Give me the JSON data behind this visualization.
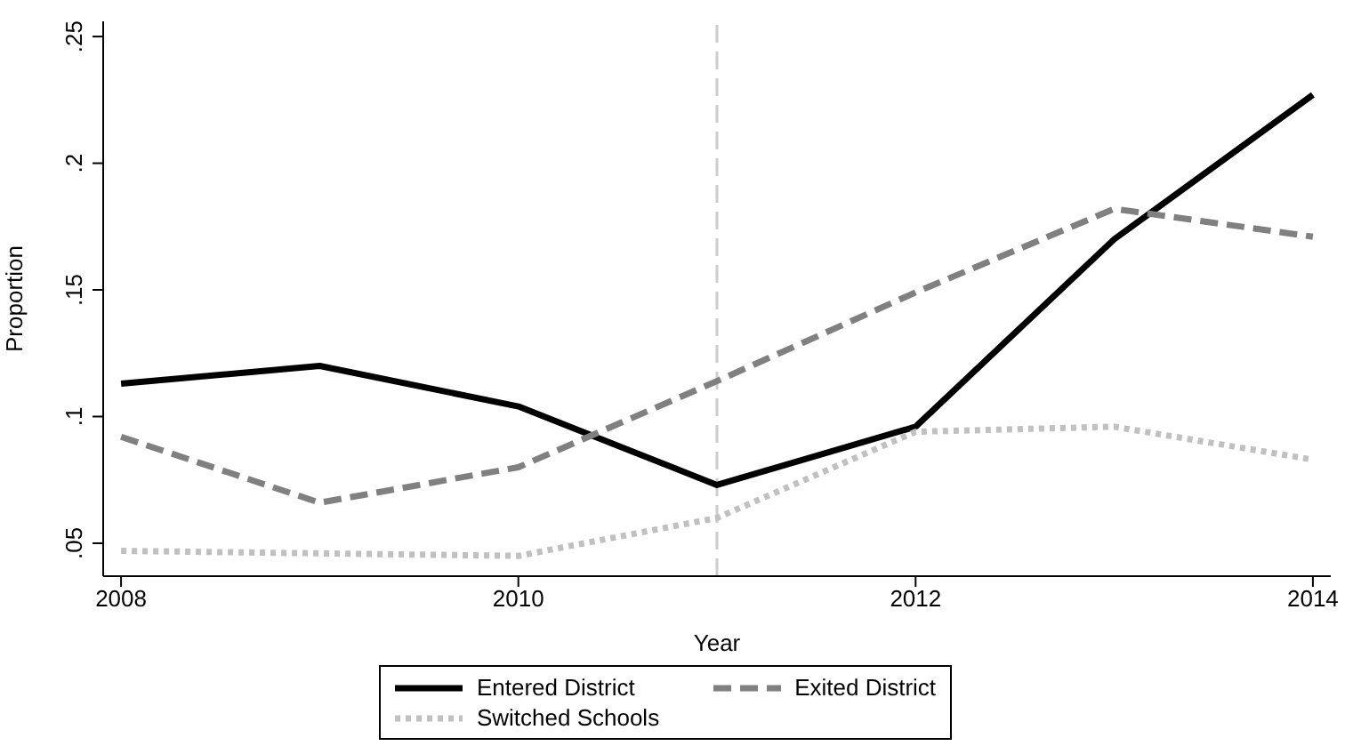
{
  "chart_data": {
    "type": "line",
    "xlabel": "Year",
    "ylabel": "Proportion",
    "x": [
      2008,
      2009,
      2010,
      2011,
      2012,
      2013,
      2014
    ],
    "series": [
      {
        "name": "Entered District",
        "color": "#000000",
        "line_style": "solid",
        "values": [
          0.113,
          0.12,
          0.104,
          0.073,
          0.096,
          0.17,
          0.227
        ]
      },
      {
        "name": "Exited District",
        "color": "#808080",
        "line_style": "dashed",
        "values": [
          0.092,
          0.066,
          0.08,
          0.114,
          0.149,
          0.182,
          0.171
        ]
      },
      {
        "name": "Switched Schools",
        "color": "#c0c0c0",
        "line_style": "dotted",
        "values": [
          0.047,
          0.046,
          0.045,
          0.06,
          0.094,
          0.096,
          0.083
        ]
      }
    ],
    "xlim": [
      2007.91,
      2014.09
    ],
    "xticks": [
      2008,
      2010,
      2012,
      2014
    ],
    "ylim": [
      0.037,
      0.256
    ],
    "yticks": [
      {
        "value": 0.05,
        "label": ".05"
      },
      {
        "value": 0.1,
        "label": ".1"
      },
      {
        "value": 0.15,
        "label": ".15"
      },
      {
        "value": 0.2,
        "label": ".2"
      },
      {
        "value": 0.25,
        "label": ".25"
      }
    ],
    "ref_lines": [
      {
        "axis": "x",
        "value": 2011,
        "color": "#cccccc",
        "line_style": "dashed"
      }
    ],
    "grid": false,
    "legend": "bottom",
    "marker": "none"
  }
}
